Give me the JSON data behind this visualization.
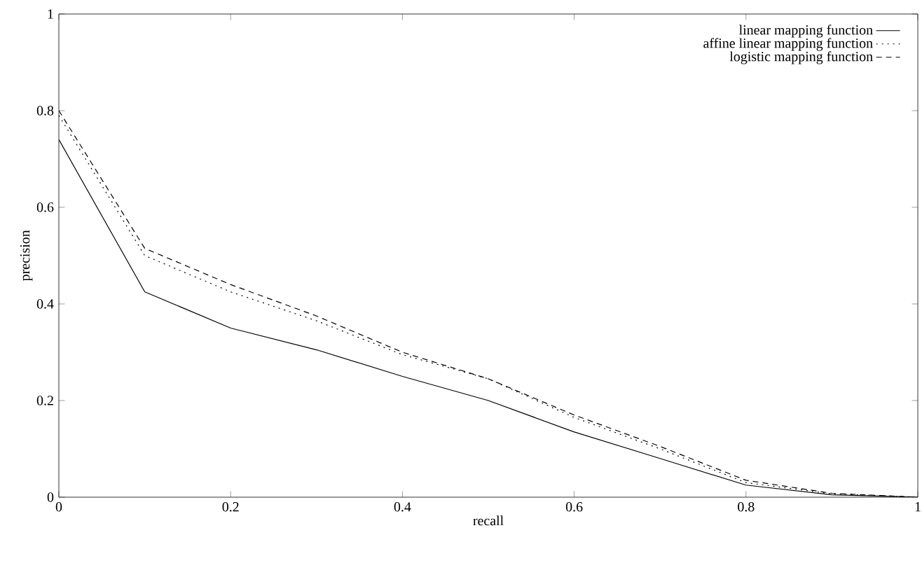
{
  "chart_data": {
    "type": "line",
    "xlabel": "recall",
    "ylabel": "precision",
    "x": [
      0,
      0.1,
      0.2,
      0.3,
      0.4,
      0.5,
      0.6,
      0.7,
      0.8,
      0.9,
      1
    ],
    "series": [
      {
        "name": "linear mapping function",
        "color": "#000000",
        "line_style": "solid",
        "values": [
          0.74,
          0.425,
          0.35,
          0.305,
          0.25,
          0.2,
          0.135,
          0.08,
          0.025,
          0.005,
          0
        ]
      },
      {
        "name": "affine linear mapping function",
        "color": "#000000",
        "line_style": "dotted",
        "values": [
          0.79,
          0.5,
          0.425,
          0.365,
          0.295,
          0.245,
          0.165,
          0.1,
          0.03,
          0.007,
          0
        ]
      },
      {
        "name": "logistic mapping function",
        "color": "#000000",
        "line_style": "dashed",
        "values": [
          0.8,
          0.515,
          0.44,
          0.375,
          0.3,
          0.245,
          0.17,
          0.105,
          0.035,
          0.008,
          0
        ]
      }
    ],
    "xlim": [
      0,
      1
    ],
    "ylim": [
      0,
      1
    ],
    "xticks": [
      0,
      0.2,
      0.4,
      0.6,
      0.8,
      1
    ],
    "yticks": [
      0,
      0.2,
      0.4,
      0.6,
      0.8,
      1
    ],
    "grid": false,
    "legend": "top right",
    "marker": "none"
  }
}
